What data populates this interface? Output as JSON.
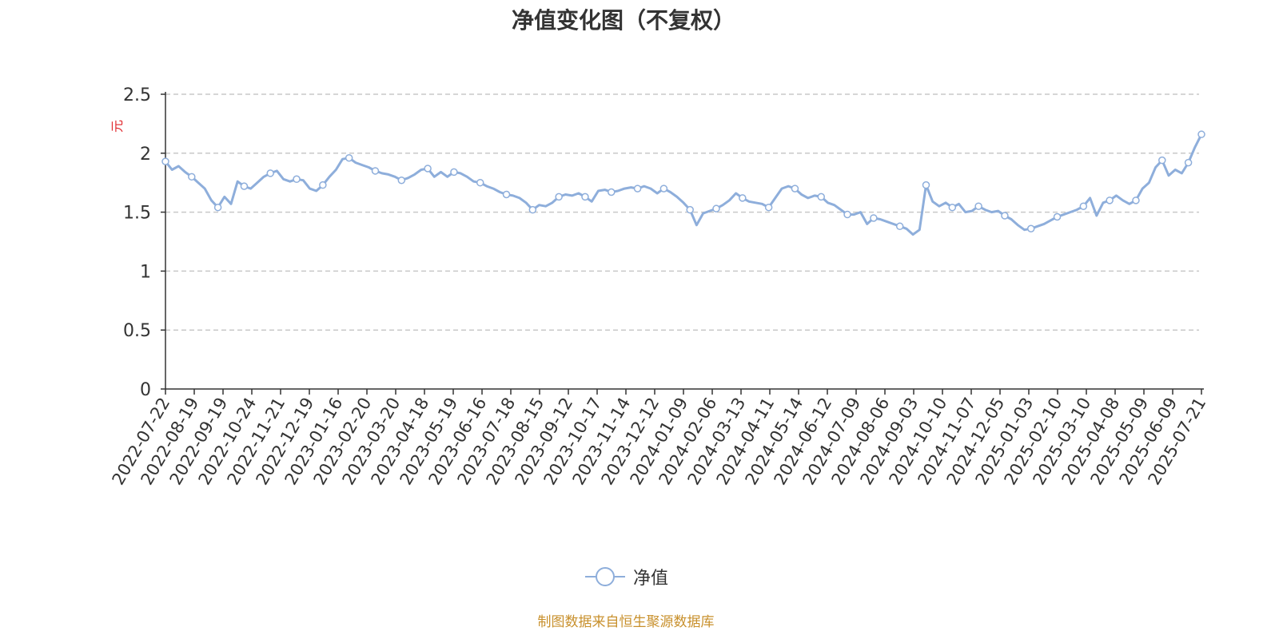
{
  "chart_data": {
    "type": "line",
    "title": "净值变化图（不复权）",
    "ylabel": "元",
    "ylim": [
      0,
      2.5
    ],
    "y_ticks": [
      "0",
      "0.5",
      "1",
      "1.5",
      "2",
      "2.5"
    ],
    "grid": true,
    "legend_position": "bottom-center",
    "x_tick_labels": [
      "2022-07-22",
      "2022-08-19",
      "2022-09-19",
      "2022-10-24",
      "2022-11-21",
      "2022-12-19",
      "2023-01-16",
      "2023-02-20",
      "2023-03-20",
      "2023-04-18",
      "2023-05-19",
      "2023-06-16",
      "2023-07-18",
      "2023-08-15",
      "2023-09-12",
      "2023-10-17",
      "2023-11-14",
      "2023-12-12",
      "2024-01-09",
      "2024-02-06",
      "2024-03-13",
      "2024-04-11",
      "2024-05-14",
      "2024-06-12",
      "2024-07-09",
      "2024-08-06",
      "2024-09-03",
      "2024-10-10",
      "2024-11-07",
      "2024-12-05",
      "2025-01-03",
      "2025-02-10",
      "2025-03-10",
      "2025-04-08",
      "2025-05-09",
      "2025-06-09",
      "2025-07-21"
    ],
    "series": [
      {
        "name": "净值",
        "color": "#8eaedb",
        "values": [
          1.93,
          1.86,
          1.89,
          1.84,
          1.8,
          1.75,
          1.7,
          1.6,
          1.54,
          1.63,
          1.57,
          1.76,
          1.72,
          1.7,
          1.75,
          1.8,
          1.83,
          1.85,
          1.78,
          1.76,
          1.78,
          1.77,
          1.7,
          1.68,
          1.73,
          1.8,
          1.86,
          1.95,
          1.96,
          1.92,
          1.9,
          1.88,
          1.85,
          1.83,
          1.82,
          1.8,
          1.77,
          1.79,
          1.82,
          1.86,
          1.87,
          1.8,
          1.84,
          1.8,
          1.84,
          1.83,
          1.8,
          1.76,
          1.75,
          1.72,
          1.7,
          1.67,
          1.65,
          1.64,
          1.62,
          1.58,
          1.52,
          1.56,
          1.55,
          1.58,
          1.63,
          1.65,
          1.64,
          1.66,
          1.63,
          1.59,
          1.68,
          1.69,
          1.67,
          1.68,
          1.7,
          1.71,
          1.7,
          1.72,
          1.7,
          1.66,
          1.7,
          1.67,
          1.63,
          1.58,
          1.52,
          1.39,
          1.49,
          1.51,
          1.53,
          1.56,
          1.6,
          1.66,
          1.62,
          1.59,
          1.58,
          1.57,
          1.54,
          1.62,
          1.7,
          1.72,
          1.7,
          1.65,
          1.62,
          1.64,
          1.63,
          1.58,
          1.56,
          1.52,
          1.48,
          1.48,
          1.5,
          1.4,
          1.45,
          1.44,
          1.42,
          1.4,
          1.38,
          1.36,
          1.31,
          1.35,
          1.73,
          1.59,
          1.55,
          1.58,
          1.54,
          1.57,
          1.5,
          1.51,
          1.55,
          1.52,
          1.5,
          1.51,
          1.47,
          1.44,
          1.39,
          1.35,
          1.36,
          1.38,
          1.4,
          1.43,
          1.46,
          1.48,
          1.5,
          1.52,
          1.55,
          1.62,
          1.47,
          1.58,
          1.6,
          1.64,
          1.6,
          1.57,
          1.6,
          1.7,
          1.75,
          1.88,
          1.94,
          1.81,
          1.86,
          1.83,
          1.92,
          2.05,
          2.16
        ]
      }
    ]
  },
  "legend": {
    "label": "净值"
  },
  "footer": {
    "source": "制图数据来自恒生聚源数据库"
  }
}
